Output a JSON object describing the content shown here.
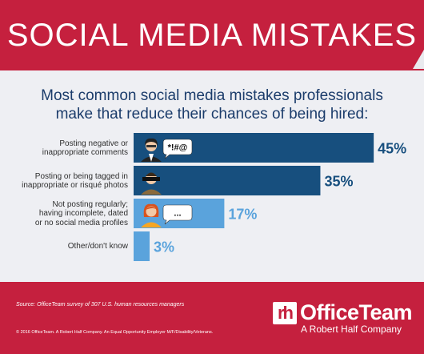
{
  "header": {
    "title": "SOCIAL MEDIA MISTAKES"
  },
  "subtitle": {
    "line1": "Most common social media mistakes professionals",
    "line2": "make that reduce their chances of being hired:"
  },
  "chart_data": {
    "type": "bar",
    "orientation": "horizontal",
    "title": "Most common social media mistakes professionals make that reduce their chances of being hired:",
    "categories": [
      "Posting negative or inappropriate comments",
      "Posting or being tagged in inappropriate or risqué photos",
      "Not posting regularly; having incomplete, dated or no social media profiles",
      "Other/don't know"
    ],
    "category_lines": [
      [
        "Posting negative or",
        "inappropriate comments"
      ],
      [
        "Posting or being tagged in",
        "inappropriate or risqué photos"
      ],
      [
        "Not posting regularly;",
        "having incomplete, dated",
        "or no social media profiles"
      ],
      [
        "Other/don't know"
      ]
    ],
    "values": [
      45,
      35,
      17,
      3
    ],
    "value_labels": [
      "45%",
      "35%",
      "17%",
      "3%"
    ],
    "bar_colors": [
      "#174f7e",
      "#174f7e",
      "#5aa3dc",
      "#5aa3dc"
    ],
    "label_colors": [
      "#174f7e",
      "#174f7e",
      "#5aa3dc",
      "#5aa3dc"
    ],
    "speech_bubbles": [
      "*!#@",
      "",
      "...",
      ""
    ],
    "grid": false,
    "legend": "none"
  },
  "footer": {
    "source": "Source: OfficeTeam survey of 307 U.S. human resources managers",
    "legal": "© 2016 OfficeTeam. A Robert Half Company. An Equal Opportunity Employer M/F/Disability/Veterans.",
    "logo_mark": "rh",
    "brand": "OfficeTeam",
    "tagline": "A Robert Half Company"
  },
  "colors": {
    "brand_red": "#c5203e",
    "dark_blue": "#174f7e",
    "light_blue": "#5aa3dc",
    "panel_gray": "#eeeff3",
    "subtitle_navy": "#1b3c6b"
  }
}
